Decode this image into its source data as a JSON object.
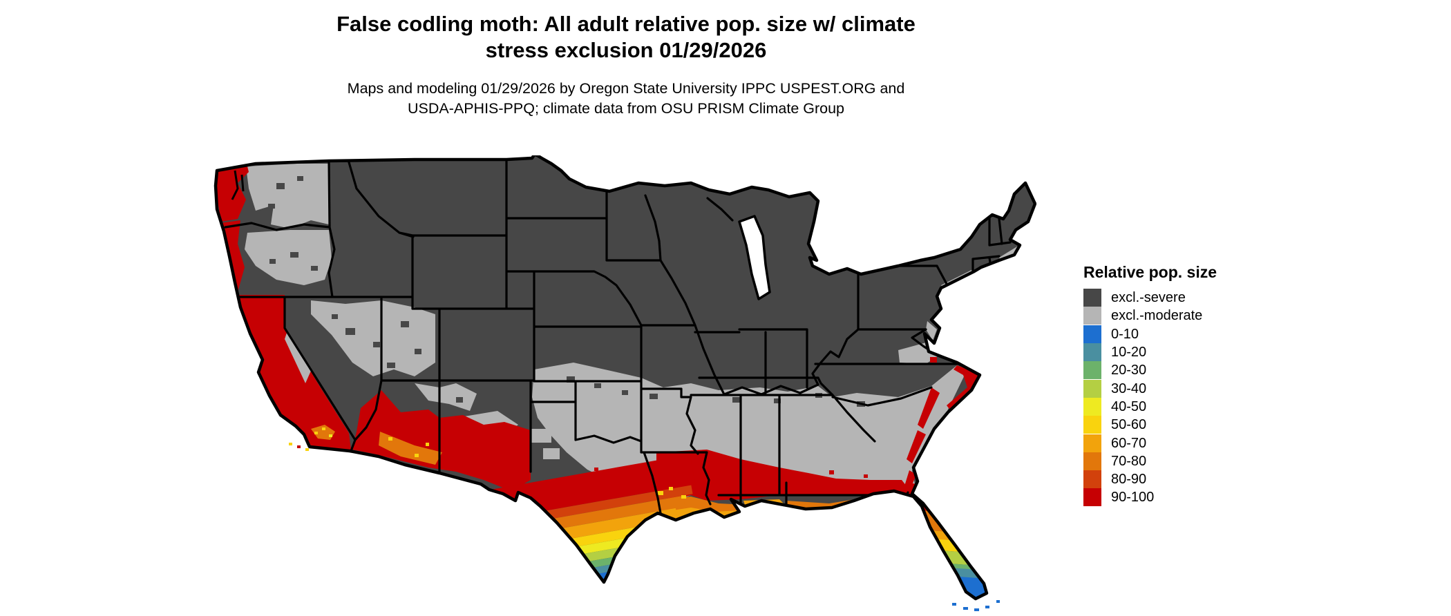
{
  "header": {
    "title_line1": "False codling moth: All adult relative pop. size w/ climate",
    "title_line2": "stress exclusion 01/29/2026",
    "subtitle_line1": "Maps and modeling 01/29/2026 by Oregon State University IPPC USPEST.ORG and",
    "subtitle_line2": "USDA-APHIS-PPQ; climate data from OSU PRISM Climate Group"
  },
  "legend": {
    "title": "Relative pop. size",
    "entries": [
      {
        "label": "excl.-severe",
        "key": "excl_severe"
      },
      {
        "label": "excl.-moderate",
        "key": "excl_moderate"
      },
      {
        "label": "0-10",
        "key": "b0_10"
      },
      {
        "label": "10-20",
        "key": "b10_20"
      },
      {
        "label": "20-30",
        "key": "b20_30"
      },
      {
        "label": "30-40",
        "key": "b30_40"
      },
      {
        "label": "40-50",
        "key": "b40_50"
      },
      {
        "label": "50-60",
        "key": "b50_60"
      },
      {
        "label": "60-70",
        "key": "b60_70"
      },
      {
        "label": "70-80",
        "key": "b70_80"
      },
      {
        "label": "80-90",
        "key": "b80_90"
      },
      {
        "label": "90-100",
        "key": "b90_100"
      }
    ],
    "colors": {
      "excl_severe": "#474747",
      "excl_moderate": "#b5b5b5",
      "b0_10": "#1d6fd0",
      "b10_20": "#4a8fa0",
      "b20_30": "#6cb26a",
      "b30_40": "#b4cf43",
      "b40_50": "#eeea21",
      "b50_60": "#f9d30e",
      "b60_70": "#f2a30c",
      "b70_80": "#e2770b",
      "b80_90": "#d2410c",
      "b90_100": "#c60003"
    }
  },
  "map": {
    "area": "Contiguous United States",
    "type": "raster choropleth with state borders",
    "visible_pattern": [
      "Most of the northern and interior U.S. shaded excl.-severe (dark gray)",
      "excl.-moderate (light gray) band across the south-central and southeastern states and parts of the interior West",
      "90-100 (red) along the Pacific coast, California, southern Arizona/New Mexico, gulf coast and southeast Atlantic coast",
      "Gradient from red through orange, yellow, green and blue toward the southern tip of Texas",
      "Florida peninsula grades from red in the north to blue (0-10) in the south; Florida Keys blue"
    ]
  }
}
